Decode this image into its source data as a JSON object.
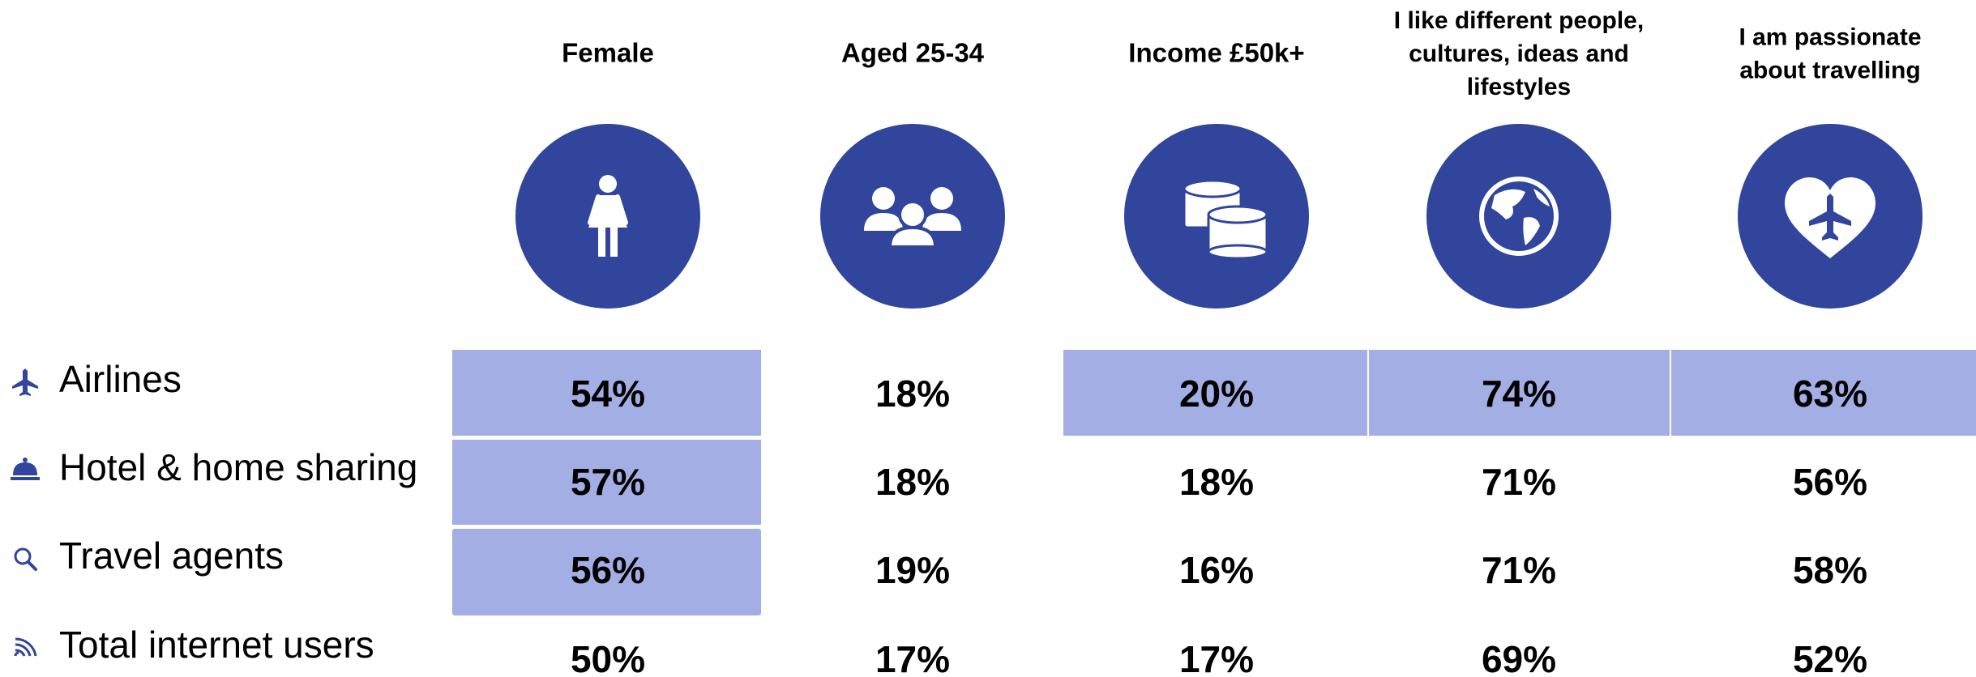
{
  "columns": [
    {
      "header": [
        "Female"
      ]
    },
    {
      "header": [
        "Aged 25-34"
      ]
    },
    {
      "header": [
        "Income £50k+"
      ]
    },
    {
      "header": [
        "I like different people,",
        "cultures, ideas and",
        "lifestyles"
      ]
    },
    {
      "header": [
        "I am passionate",
        "about travelling"
      ]
    }
  ],
  "rows": [
    {
      "label": "Airlines",
      "cells": [
        {
          "text": "54%",
          "highlight": true
        },
        {
          "text": "18%",
          "highlight": false
        },
        {
          "text": "20%",
          "highlight": true
        },
        {
          "text": "74%",
          "highlight": true
        },
        {
          "text": "63%",
          "highlight": true
        }
      ]
    },
    {
      "label": "Hotel & home sharing",
      "cells": [
        {
          "text": "57%",
          "highlight": true
        },
        {
          "text": "18%",
          "highlight": false
        },
        {
          "text": "18%",
          "highlight": false
        },
        {
          "text": "71%",
          "highlight": false
        },
        {
          "text": "56%",
          "highlight": false
        }
      ]
    },
    {
      "label": "Travel agents",
      "cells": [
        {
          "text": "56%",
          "highlight": true
        },
        {
          "text": "19%",
          "highlight": false
        },
        {
          "text": "16%",
          "highlight": false
        },
        {
          "text": "71%",
          "highlight": false
        },
        {
          "text": "58%",
          "highlight": false
        }
      ]
    },
    {
      "label": "Total internet users",
      "cells": [
        {
          "text": "50%",
          "highlight": false
        },
        {
          "text": "17%",
          "highlight": false
        },
        {
          "text": "17%",
          "highlight": false
        },
        {
          "text": "69%",
          "highlight": false
        },
        {
          "text": "52%",
          "highlight": false
        }
      ]
    }
  ]
}
